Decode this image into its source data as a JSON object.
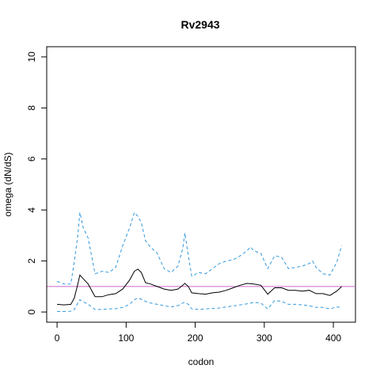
{
  "chart_data": {
    "type": "line",
    "title": "Rv2943",
    "xlabel": "codon",
    "ylabel": "omega (dN/dS)",
    "xlim": [
      -15,
      432
    ],
    "ylim": [
      -0.4,
      10.4
    ],
    "x_ticks": [
      0,
      100,
      200,
      300,
      400
    ],
    "y_ticks": [
      0,
      2,
      4,
      6,
      8,
      10
    ],
    "x_tick_labels": [
      "0",
      "100",
      "200",
      "300",
      "400"
    ],
    "y_tick_labels": [
      "0",
      "2",
      "4",
      "6",
      "8",
      "10"
    ],
    "grid": false,
    "reference_line": {
      "y": 1,
      "color": "#cc66cc"
    },
    "series": [
      {
        "role": "estimate",
        "color": "#000000",
        "dash": "solid",
        "x": [
          0,
          10,
          20,
          25,
          30,
          33,
          38,
          45,
          55,
          65,
          75,
          85,
          95,
          105,
          112,
          117,
          122,
          128,
          135,
          145,
          155,
          165,
          175,
          182,
          185,
          190,
          195,
          205,
          215,
          225,
          235,
          245,
          255,
          265,
          275,
          285,
          295,
          305,
          315,
          325,
          335,
          345,
          355,
          365,
          375,
          385,
          395,
          405,
          412
        ],
        "y": [
          0.3,
          0.28,
          0.3,
          0.55,
          1.1,
          1.45,
          1.3,
          1.1,
          0.6,
          0.6,
          0.68,
          0.72,
          0.9,
          1.25,
          1.6,
          1.68,
          1.55,
          1.15,
          1.1,
          1.0,
          0.9,
          0.85,
          0.9,
          1.05,
          1.12,
          1.0,
          0.75,
          0.72,
          0.7,
          0.75,
          0.78,
          0.85,
          0.95,
          1.05,
          1.12,
          1.1,
          1.05,
          0.7,
          0.95,
          0.95,
          0.85,
          0.85,
          0.82,
          0.85,
          0.72,
          0.72,
          0.65,
          0.82,
          1.0
        ]
      },
      {
        "role": "upper-bound",
        "color": "#3399dd",
        "dash": "dashed",
        "x": [
          0,
          10,
          20,
          25,
          30,
          33,
          38,
          45,
          50,
          55,
          65,
          75,
          85,
          95,
          105,
          112,
          117,
          122,
          128,
          135,
          145,
          155,
          165,
          175,
          182,
          185,
          190,
          195,
          205,
          215,
          225,
          235,
          245,
          255,
          265,
          275,
          280,
          285,
          295,
          305,
          315,
          325,
          335,
          345,
          355,
          365,
          370,
          375,
          385,
          395,
          405,
          412
        ],
        "y": [
          1.2,
          1.1,
          1.1,
          2.0,
          3.0,
          3.9,
          3.3,
          2.9,
          2.2,
          1.5,
          1.6,
          1.55,
          1.75,
          2.6,
          3.3,
          3.9,
          3.75,
          3.5,
          2.8,
          2.55,
          2.3,
          1.7,
          1.55,
          1.8,
          2.5,
          3.1,
          2.2,
          1.4,
          1.55,
          1.5,
          1.7,
          1.9,
          2.0,
          2.05,
          2.2,
          2.4,
          2.55,
          2.4,
          2.3,
          1.7,
          2.2,
          2.15,
          1.7,
          1.75,
          1.8,
          1.9,
          2.0,
          1.75,
          1.5,
          1.45,
          1.95,
          2.6
        ]
      },
      {
        "role": "lower-bound",
        "color": "#3399dd",
        "dash": "dashed",
        "x": [
          0,
          10,
          20,
          25,
          30,
          33,
          38,
          45,
          55,
          65,
          75,
          85,
          95,
          105,
          112,
          117,
          122,
          128,
          135,
          145,
          155,
          165,
          175,
          182,
          185,
          190,
          195,
          205,
          215,
          225,
          235,
          245,
          255,
          265,
          275,
          285,
          295,
          305,
          315,
          325,
          335,
          345,
          355,
          365,
          375,
          385,
          395,
          405,
          412
        ],
        "y": [
          0.02,
          0.02,
          0.03,
          0.1,
          0.35,
          0.48,
          0.4,
          0.3,
          0.1,
          0.1,
          0.12,
          0.13,
          0.18,
          0.3,
          0.48,
          0.55,
          0.5,
          0.42,
          0.35,
          0.3,
          0.25,
          0.2,
          0.25,
          0.35,
          0.38,
          0.3,
          0.12,
          0.1,
          0.12,
          0.14,
          0.16,
          0.2,
          0.24,
          0.28,
          0.32,
          0.38,
          0.35,
          0.12,
          0.45,
          0.42,
          0.3,
          0.3,
          0.28,
          0.25,
          0.18,
          0.18,
          0.12,
          0.2,
          0.18
        ]
      }
    ]
  }
}
